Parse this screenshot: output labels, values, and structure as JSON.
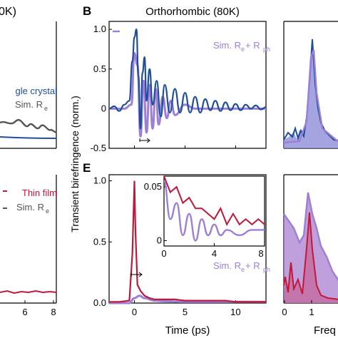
{
  "figure": {
    "panel_letters": {
      "B": "B",
      "E": "E"
    },
    "top_title": "Orthorhombic (80K)",
    "left_title_fragment": "0K)",
    "ylabel": "Transient birefringence (norm.)",
    "xlabel_main": "Time (ps)",
    "xlabel_right_fragment": "Freq",
    "legend_top_left": {
      "line1": "gle crystal",
      "line2": "Sim. R",
      "line2_sub": "e"
    },
    "legend_bottom_left": {
      "line1": "Thin film",
      "line2": "Sim. R",
      "line2_sub": "e"
    },
    "legend_b": {
      "text": "Sim. R",
      "sub1": "e",
      "plus": " + R",
      "sub2": "ph"
    },
    "legend_e": {
      "text": "Sim. R",
      "sub1": "e",
      "plus": " + R",
      "sub2": "ph"
    },
    "left_ticks": [
      "6",
      "8"
    ],
    "main_xticks": [
      "0",
      "5",
      "10"
    ],
    "right_xticks": [
      "0",
      "1"
    ],
    "b_yticks": [
      "1.0",
      "0.5",
      "0",
      "-0.5"
    ],
    "e_yticks": [
      "1.0",
      "0.5",
      "0.0"
    ],
    "inset_yticks": [
      "0.05",
      "0"
    ],
    "inset_xticks": [
      "0",
      "4",
      "8"
    ],
    "colors": {
      "crystal": "#1f4e9a",
      "sim_purple": "#9c7fd6",
      "sim_gray": "#555555",
      "film": "#c0183a",
      "fill_blue": "#8d8fd8",
      "fill_red": "#c66aa0"
    }
  },
  "chart_data": [
    {
      "panel": "B",
      "type": "line",
      "title": "Orthorhombic (80K)",
      "xlabel": "Time (ps)",
      "ylabel": "Transient birefringence (norm.)",
      "xlim": [
        -2.5,
        13
      ],
      "ylim": [
        -0.5,
        1.1
      ],
      "series": [
        {
          "name": "",
          "x": [
            -2.5,
            -2,
            -1.5,
            -1,
            -0.5,
            -0.2,
            0,
            0.2,
            0.4,
            0.6,
            0.8,
            1,
            1.2,
            1.5,
            1.8,
            2.2,
            2.6,
            3,
            3.5,
            4,
            4.5,
            5,
            5.5,
            6,
            6.5,
            7,
            7.5,
            8,
            8.5,
            9,
            9.5,
            10,
            10.5,
            11,
            11.5,
            12,
            12.5,
            13
          ],
          "y": [
            0,
            0.03,
            -0.03,
            0.05,
            0.1,
            0.6,
            0.9,
            1.0,
            0.4,
            -0.25,
            0.45,
            0.65,
            0.1,
            0.5,
            0.05,
            0.35,
            -0.1,
            0.3,
            -0.05,
            0.25,
            -0.05,
            0.2,
            -0.05,
            0.15,
            -0.05,
            0.12,
            -0.02,
            0.1,
            -0.03,
            0.08,
            -0.02,
            0.06,
            -0.02,
            0.05,
            0,
            0.04,
            -0.01,
            0.02
          ]
        },
        {
          "name": "Sim. Re + Rph",
          "x": [
            -2.5,
            -1,
            -0.3,
            0,
            0.3,
            0.6,
            0.9,
            1.2,
            1.5,
            1.8,
            2.1,
            2.4,
            2.8,
            3.2,
            3.6,
            4,
            5,
            6,
            7,
            8,
            9,
            10,
            11,
            12,
            13
          ],
          "y": [
            0,
            0,
            0.05,
            0.7,
            0.55,
            -0.35,
            0.35,
            -0.3,
            0.3,
            -0.25,
            0.25,
            -0.2,
            0.15,
            -0.12,
            0.1,
            -0.08,
            0.05,
            0,
            0,
            0,
            0,
            0,
            0,
            0,
            0
          ]
        }
      ]
    },
    {
      "panel": "E",
      "type": "line",
      "xlabel": "Time (ps)",
      "ylim": [
        0,
        1.05
      ],
      "xlim": [
        -2.5,
        13
      ],
      "series": [
        {
          "name": "",
          "x": [
            -2.5,
            -1.5,
            -0.5,
            -0.2,
            0,
            0.1,
            0.3,
            0.6,
            1,
            1.5,
            2,
            3,
            4,
            5,
            6,
            7,
            8,
            9,
            10,
            11,
            12,
            13
          ],
          "y": [
            0.01,
            0.01,
            0.02,
            0.4,
            1.0,
            0.6,
            0.15,
            0.1,
            0.06,
            0.04,
            0.03,
            0.03,
            0.03,
            0.02,
            0.02,
            0.02,
            0.02,
            0.02,
            0.01,
            0.01,
            0.01,
            0.01
          ]
        },
        {
          "name": "Sim. Re + Rph",
          "x": [
            -2.5,
            -0.5,
            0,
            0.5,
            1,
            2,
            3,
            5,
            8,
            13
          ],
          "y": [
            0,
            0,
            0.04,
            0.06,
            0.04,
            0.02,
            0.015,
            0.01,
            0.01,
            0.01
          ]
        }
      ],
      "inset": {
        "xlim": [
          0,
          8
        ],
        "ylim": [
          -0.005,
          0.06
        ],
        "series": [
          {
            "name": "",
            "x": [
              0,
              0.5,
              1,
              1.5,
              2,
              2.5,
              3,
              3.5,
              4,
              4.5,
              5,
              5.5,
              6,
              6.5,
              7,
              7.5,
              8
            ],
            "y": [
              0.06,
              0.045,
              0.05,
              0.035,
              0.04,
              0.03,
              0.03,
              0.025,
              0.02,
              0.03,
              0.015,
              0.025,
              0.015,
              0.02,
              0.015,
              0.02,
              0.015
            ]
          },
          {
            "name": "",
            "x": [
              0,
              0.5,
              1,
              1.5,
              2,
              2.5,
              3,
              3.5,
              4,
              4.5,
              5,
              6,
              7,
              8
            ],
            "y": [
              0.055,
              0.02,
              0.035,
              0.005,
              0.025,
              0.0,
              0.02,
              0.005,
              0.015,
              0.005,
              0.01,
              0.005,
              0.01,
              0.01
            ]
          }
        ]
      }
    },
    {
      "panel": "left-top",
      "type": "line",
      "series": [
        {
          "name": "Sim. Re",
          "x": [
            3.5,
            4,
            4.5,
            5,
            5.5,
            6,
            6.5,
            7,
            7.5,
            8
          ],
          "y": [
            0.55,
            0.45,
            0.58,
            0.62,
            0.4,
            0.6,
            0.38,
            0.5,
            0.42,
            0.45
          ]
        }
      ]
    },
    {
      "panel": "right",
      "type": "area",
      "xlabel": "Freq",
      "xticks": [
        "0",
        "1"
      ]
    }
  ]
}
